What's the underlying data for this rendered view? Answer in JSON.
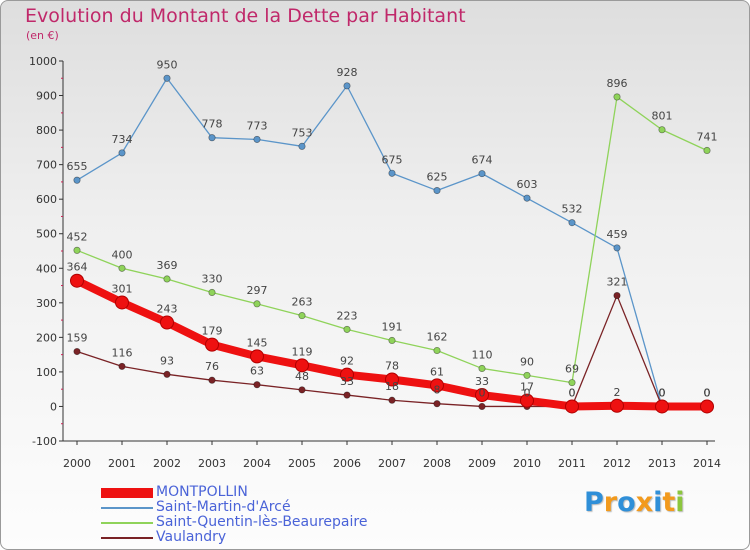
{
  "header": {
    "title": "Evolution du Montant de la Dette par Habitant",
    "subtitle": "(en €)"
  },
  "logo": {
    "text": "Proxiti",
    "letters": [
      {
        "ch": "P",
        "color": "#2f8fd8"
      },
      {
        "ch": "r",
        "color": "#f29a1d"
      },
      {
        "ch": "o",
        "color": "#2f8fd8"
      },
      {
        "ch": "x",
        "color": "#f29a1d"
      },
      {
        "ch": "i",
        "color": "#2f8fd8"
      },
      {
        "ch": "t",
        "color": "#f29a1d"
      },
      {
        "ch": "i",
        "color": "#8cc63e"
      }
    ]
  },
  "chart_data": {
    "type": "line",
    "title": "Evolution du Montant de la Dette par Habitant",
    "subtitle": "(en €)",
    "x": [
      "2000",
      "2001",
      "2002",
      "2003",
      "2004",
      "2005",
      "2006",
      "2007",
      "2008",
      "2009",
      "2010",
      "2011",
      "2012",
      "2013",
      "2014"
    ],
    "ylim": [
      -100,
      1000
    ],
    "yticks": [
      -100,
      0,
      100,
      200,
      300,
      400,
      500,
      600,
      700,
      800,
      900,
      1000
    ],
    "grid": false,
    "legend_position": "bottom-left",
    "series": [
      {
        "name": "Saint-Martin-d'Arcé",
        "color": "#5b95c9",
        "values": [
          655,
          734,
          950,
          778,
          773,
          753,
          928,
          675,
          625,
          674,
          603,
          532,
          459,
          0,
          0
        ],
        "labels": [
          "655",
          "734",
          "950",
          "778",
          "773",
          "753",
          "928",
          "675",
          "625",
          "674",
          "603",
          "532",
          "459",
          "0",
          "0"
        ]
      },
      {
        "name": "Saint-Quentin-lès-Beaurepaire",
        "color": "#8fd35a",
        "values": [
          452,
          400,
          369,
          330,
          297,
          263,
          223,
          191,
          162,
          110,
          90,
          69,
          896,
          801,
          741
        ],
        "labels": [
          "452",
          "400",
          "369",
          "330",
          "297",
          "263",
          "223",
          "191",
          "162",
          "110",
          "90",
          "69",
          "896",
          "801",
          "741"
        ]
      },
      {
        "name": "Vaulandry",
        "color": "#7a2326",
        "values": [
          159,
          116,
          93,
          76,
          63,
          48,
          33,
          18,
          8,
          0,
          0,
          0,
          321,
          0,
          0
        ],
        "labels": [
          "159",
          "116",
          "93",
          "76",
          "63",
          "48",
          "33",
          "18",
          "8",
          "0",
          "0",
          "0",
          "321",
          "0",
          "0"
        ]
      },
      {
        "name": "MONTPOLLIN",
        "color": "#ee1111",
        "emphasized": true,
        "values": [
          364,
          301,
          243,
          179,
          145,
          119,
          92,
          78,
          61,
          33,
          17,
          0,
          2,
          0,
          0
        ],
        "labels": [
          "364",
          "301",
          "243",
          "179",
          "145",
          "119",
          "92",
          "78",
          "61",
          "33",
          "17",
          "0",
          "2",
          "0",
          "0"
        ]
      }
    ]
  },
  "legend": {
    "items": [
      {
        "label": "MONTPOLLIN",
        "color": "#ee1111",
        "thick": true
      },
      {
        "label": "Saint-Martin-d'Arcé",
        "color": "#5b95c9",
        "thick": false
      },
      {
        "label": "Saint-Quentin-lès-Beaurepaire",
        "color": "#8fd35a",
        "thick": false
      },
      {
        "label": "Vaulandry",
        "color": "#7a2326",
        "thick": false
      }
    ]
  }
}
